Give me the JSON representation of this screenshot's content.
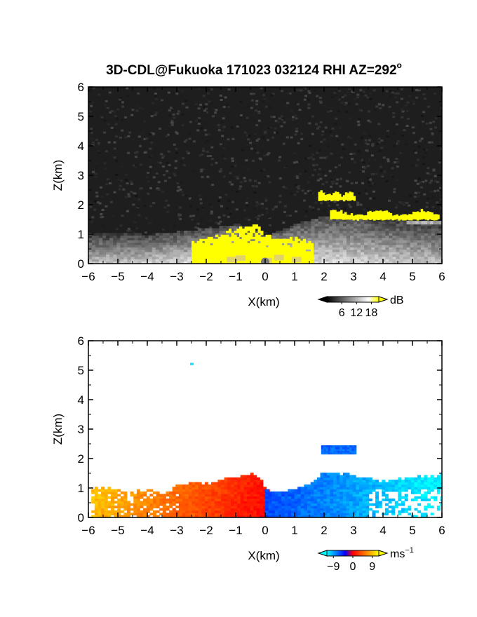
{
  "chart_data": [
    {
      "type": "heatmap",
      "title": "3D-CDL@Fukuoka 171023 032124 RHI AZ=292",
      "title_superscript": "o",
      "xlabel": "X(km)",
      "ylabel": "Z(km)",
      "xlim": [
        -6,
        6
      ],
      "ylim": [
        0,
        6
      ],
      "xticks": [
        "-6",
        "-5",
        "-4",
        "-3",
        "-2",
        "-1",
        "0",
        "1",
        "2",
        "3",
        "4",
        "5",
        "6"
      ],
      "yticks": [
        "0",
        "1",
        "2",
        "3",
        "4",
        "5",
        "6"
      ],
      "grid": false,
      "variable": "backscatter intensity",
      "colorbar": {
        "unit": "dB",
        "ticks": [
          "6",
          "12",
          "18"
        ],
        "range": [
          0,
          21
        ],
        "colors": [
          "#000000",
          "#ffffff",
          "#ffff00"
        ]
      },
      "regions": [
        {
          "name": "boundary-layer",
          "x": [
            -6,
            6
          ],
          "z_top": [
            1.0,
            1.0,
            0.95,
            1.05,
            1.15,
            1.3,
            0.9,
            1.3,
            1.6,
            1.6,
            1.5,
            1.45,
            1.3
          ]
        },
        {
          "name": "strong-echo",
          "x": [
            -2.5,
            1.6
          ],
          "z_top_max": 1.45,
          "value_db": 18
        },
        {
          "name": "cloud-layer-upper",
          "x": [
            1.8,
            3.0
          ],
          "z": [
            2.15,
            2.45
          ],
          "value_db": 19
        },
        {
          "name": "cloud-layer-lower",
          "x": [
            2.2,
            5.9
          ],
          "z": [
            1.5,
            1.8
          ],
          "value_db": 19
        }
      ]
    },
    {
      "type": "heatmap",
      "xlabel": "X(km)",
      "ylabel": "Z(km)",
      "xlim": [
        -6,
        6
      ],
      "ylim": [
        0,
        6
      ],
      "xticks": [
        "-6",
        "-5",
        "-4",
        "-3",
        "-2",
        "-1",
        "0",
        "1",
        "2",
        "3",
        "4",
        "5",
        "6"
      ],
      "yticks": [
        "0",
        "1",
        "2",
        "3",
        "4",
        "5",
        "6"
      ],
      "grid": false,
      "variable": "radial velocity",
      "colorbar": {
        "unit": "ms",
        "unit_superscript": "-1",
        "ticks": [
          "-9",
          "0",
          "9"
        ],
        "range": [
          -12,
          12
        ],
        "colors": [
          "#00ffff",
          "#0000ff",
          "#ff0000",
          "#ffff00"
        ]
      },
      "regions": [
        {
          "name": "negative-side",
          "x": [
            -6,
            0
          ],
          "velocity_ms": [
            9,
            0
          ]
        },
        {
          "name": "positive-side",
          "x": [
            0,
            6
          ],
          "velocity_ms": [
            -6,
            -12
          ]
        },
        {
          "name": "isolated-echo",
          "x": -2.5,
          "z": 5.2,
          "velocity_ms": -11
        }
      ]
    }
  ]
}
